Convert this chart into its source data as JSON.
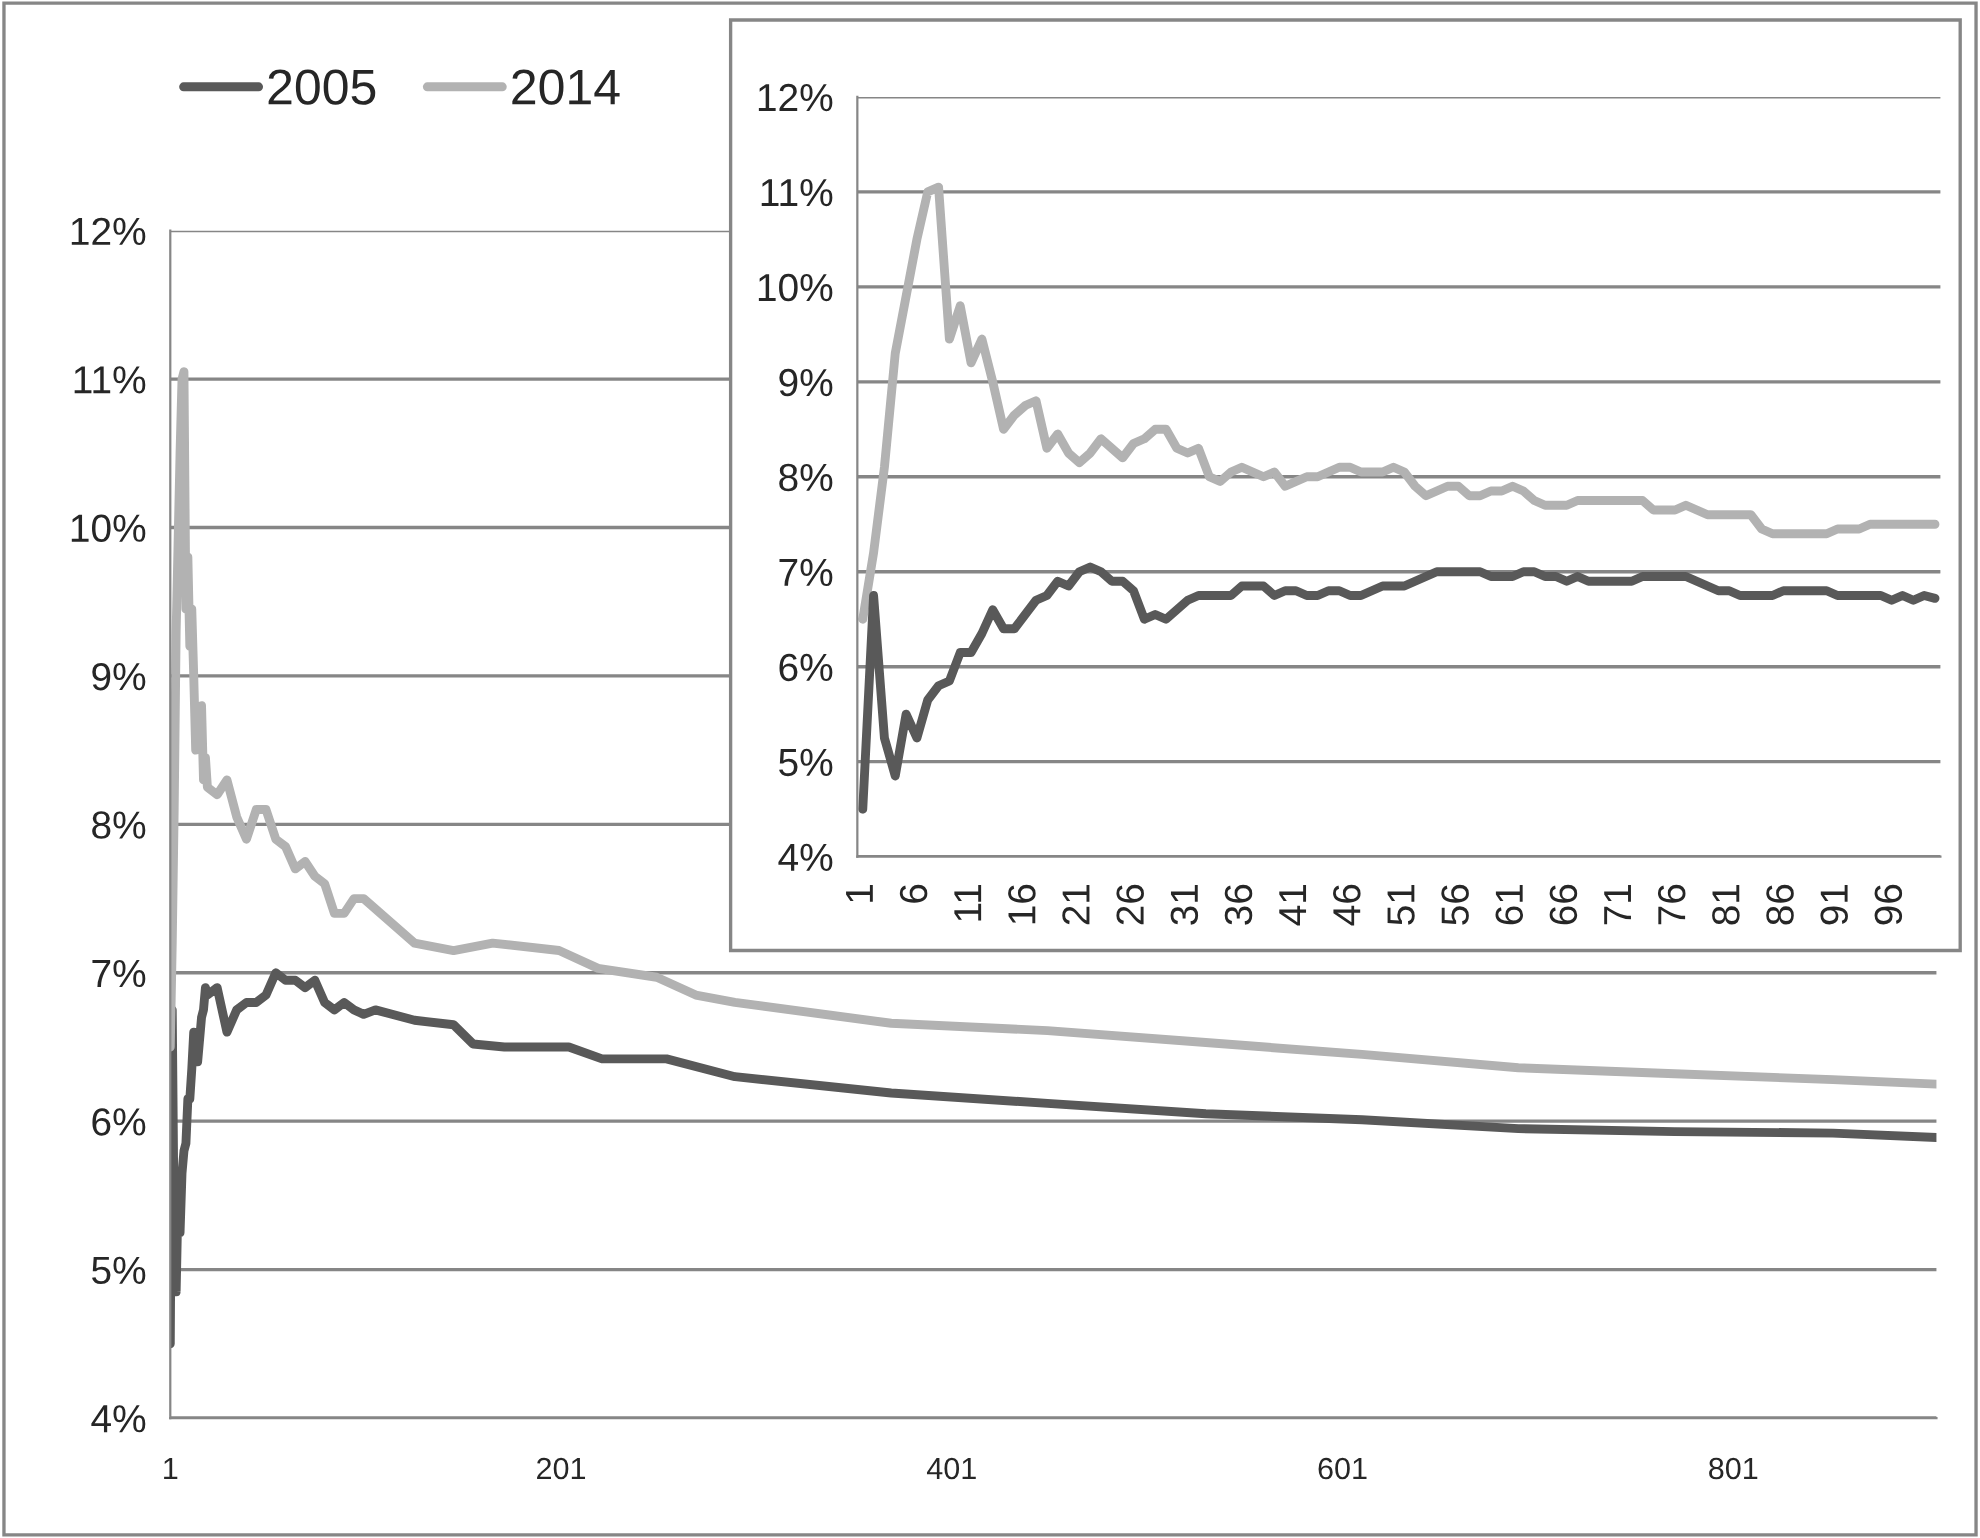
{
  "chart_data": [
    {
      "type": "line",
      "xlim": [
        1,
        905
      ],
      "xticks": [
        1,
        201,
        401,
        601,
        801
      ],
      "ylim": [
        4,
        12
      ],
      "yticks": [
        {
          "value": 4,
          "label": "4%"
        },
        {
          "value": 5,
          "label": "5%"
        },
        {
          "value": 6,
          "label": "6%"
        },
        {
          "value": 7,
          "label": "7%"
        },
        {
          "value": 8,
          "label": "8%"
        },
        {
          "value": 9,
          "label": "9%"
        },
        {
          "value": 10,
          "label": "10%"
        },
        {
          "value": 11,
          "label": "11%"
        },
        {
          "value": 12,
          "label": "12%"
        }
      ],
      "grid": "y",
      "legend": "top left",
      "line_style": "solid",
      "marker": "none",
      "series": [
        {
          "name": "2005",
          "color": "#595959",
          "x": [
            1,
            2,
            3,
            4,
            5,
            6,
            7,
            8,
            9,
            10,
            11,
            12,
            13,
            14,
            15,
            16,
            17,
            18,
            19,
            20,
            25,
            30,
            35,
            40,
            45,
            50,
            55,
            60,
            65,
            70,
            75,
            80,
            85,
            90,
            95,
            100,
            106,
            126,
            146,
            156,
            172,
            205,
            222,
            255,
            290,
            370,
            450,
            531,
            611,
            691,
            771,
            852,
            905
          ],
          "values": [
            4.5,
            6.75,
            5.25,
            4.85,
            5.5,
            5.25,
            5.65,
            5.8,
            5.85,
            6.15,
            6.15,
            6.35,
            6.6,
            6.4,
            6.4,
            6.55,
            6.7,
            6.75,
            6.9,
            6.85,
            6.9,
            6.6,
            6.75,
            6.8,
            6.8,
            6.85,
            7.0,
            6.95,
            6.95,
            6.9,
            6.95,
            6.8,
            6.75,
            6.8,
            6.75,
            6.72,
            6.75,
            6.68,
            6.65,
            6.52,
            6.5,
            6.5,
            6.42,
            6.42,
            6.3,
            6.19,
            6.12,
            6.05,
            6.01,
            5.95,
            5.93,
            5.92,
            5.89
          ]
        },
        {
          "name": "2014",
          "color": "#b2b2b2",
          "x": [
            1,
            2,
            3,
            4,
            5,
            6,
            7,
            8,
            9,
            10,
            11,
            12,
            13,
            14,
            15,
            16,
            17,
            18,
            19,
            20,
            25,
            30,
            35,
            40,
            45,
            50,
            55,
            60,
            65,
            70,
            75,
            80,
            85,
            90,
            95,
            100,
            126,
            146,
            166,
            200,
            220,
            250,
            270,
            290,
            370,
            450,
            531,
            611,
            691,
            771,
            852,
            905
          ],
          "values": [
            6.5,
            7.2,
            8.1,
            9.3,
            9.9,
            10.5,
            11.0,
            11.05,
            9.45,
            9.8,
            9.2,
            9.45,
            9.0,
            8.5,
            8.65,
            8.75,
            8.8,
            8.3,
            8.45,
            8.25,
            8.2,
            8.3,
            8.05,
            7.9,
            8.1,
            8.1,
            7.9,
            7.85,
            7.7,
            7.75,
            7.65,
            7.6,
            7.4,
            7.4,
            7.5,
            7.5,
            7.2,
            7.15,
            7.2,
            7.15,
            7.03,
            6.97,
            6.85,
            6.8,
            6.66,
            6.61,
            6.53,
            6.45,
            6.36,
            6.32,
            6.28,
            6.25
          ]
        }
      ]
    },
    {
      "type": "line",
      "categories": [
        "1",
        null,
        null,
        null,
        null,
        "6",
        null,
        null,
        null,
        null,
        "11",
        null,
        null,
        null,
        null,
        "16",
        null,
        null,
        null,
        null,
        "21",
        null,
        null,
        null,
        null,
        "26",
        null,
        null,
        null,
        null,
        "31",
        null,
        null,
        null,
        null,
        "36",
        null,
        null,
        null,
        null,
        "41",
        null,
        null,
        null,
        null,
        "46",
        null,
        null,
        null,
        null,
        "51",
        null,
        null,
        null,
        null,
        "56",
        null,
        null,
        null,
        null,
        "61",
        null,
        null,
        null,
        null,
        "66",
        null,
        null,
        null,
        null,
        "71",
        null,
        null,
        null,
        null,
        "76",
        null,
        null,
        null,
        null,
        "81",
        null,
        null,
        null,
        null,
        "86",
        null,
        null,
        null,
        null,
        "91",
        null,
        null,
        null,
        null,
        "96",
        null,
        null,
        null,
        null
      ],
      "ylim": [
        4,
        12
      ],
      "yticks": [
        {
          "value": 4,
          "label": "4%"
        },
        {
          "value": 5,
          "label": "5%"
        },
        {
          "value": 6,
          "label": "6%"
        },
        {
          "value": 7,
          "label": "7%"
        },
        {
          "value": 8,
          "label": "8%"
        },
        {
          "value": 9,
          "label": "9%"
        },
        {
          "value": 10,
          "label": "10%"
        },
        {
          "value": 11,
          "label": "11%"
        },
        {
          "value": 12,
          "label": "12%"
        }
      ],
      "grid": "y",
      "line_style": "solid",
      "marker": "none",
      "series": [
        {
          "color": "#b2b2b2",
          "values": [
            6.5,
            7.2,
            8.1,
            9.3,
            9.9,
            10.5,
            11.0,
            11.05,
            9.45,
            9.8,
            9.2,
            9.45,
            9.0,
            8.5,
            8.65,
            8.75,
            8.8,
            8.3,
            8.45,
            8.25,
            8.15,
            8.25,
            8.4,
            8.3,
            8.2,
            8.35,
            8.4,
            8.5,
            8.5,
            8.3,
            8.25,
            8.3,
            8.0,
            7.95,
            8.05,
            8.1,
            8.05,
            8.0,
            8.05,
            7.9,
            7.95,
            8.0,
            8.0,
            8.05,
            8.1,
            8.1,
            8.05,
            8.05,
            8.05,
            8.1,
            8.05,
            7.9,
            7.8,
            7.85,
            7.9,
            7.9,
            7.8,
            7.8,
            7.85,
            7.85,
            7.9,
            7.85,
            7.75,
            7.7,
            7.7,
            7.7,
            7.75,
            7.75,
            7.75,
            7.75,
            7.75,
            7.75,
            7.75,
            7.65,
            7.65,
            7.65,
            7.7,
            7.65,
            7.6,
            7.6,
            7.6,
            7.6,
            7.6,
            7.45,
            7.4,
            7.4,
            7.4,
            7.4,
            7.4,
            7.4,
            7.45,
            7.45,
            7.45,
            7.5,
            7.5,
            7.5,
            7.5,
            7.5,
            7.5,
            7.5
          ]
        },
        {
          "color": "#595959",
          "values": [
            4.5,
            6.75,
            5.25,
            4.85,
            5.5,
            5.25,
            5.65,
            5.8,
            5.85,
            6.15,
            6.15,
            6.35,
            6.6,
            6.4,
            6.4,
            6.55,
            6.7,
            6.75,
            6.9,
            6.85,
            7.0,
            7.05,
            7.0,
            6.9,
            6.9,
            6.8,
            6.5,
            6.55,
            6.5,
            6.6,
            6.7,
            6.75,
            6.75,
            6.75,
            6.75,
            6.85,
            6.85,
            6.85,
            6.75,
            6.8,
            6.8,
            6.75,
            6.75,
            6.8,
            6.8,
            6.75,
            6.75,
            6.8,
            6.85,
            6.85,
            6.85,
            6.9,
            6.95,
            7.0,
            7.0,
            7.0,
            7.0,
            7.0,
            6.95,
            6.95,
            6.95,
            7.0,
            7.0,
            6.95,
            6.95,
            6.9,
            6.95,
            6.9,
            6.9,
            6.9,
            6.9,
            6.9,
            6.95,
            6.95,
            6.95,
            6.95,
            6.95,
            6.9,
            6.85,
            6.8,
            6.8,
            6.75,
            6.75,
            6.75,
            6.75,
            6.8,
            6.8,
            6.8,
            6.8,
            6.8,
            6.75,
            6.75,
            6.75,
            6.75,
            6.75,
            6.7,
            6.75,
            6.7,
            6.75,
            6.72
          ]
        }
      ]
    }
  ]
}
